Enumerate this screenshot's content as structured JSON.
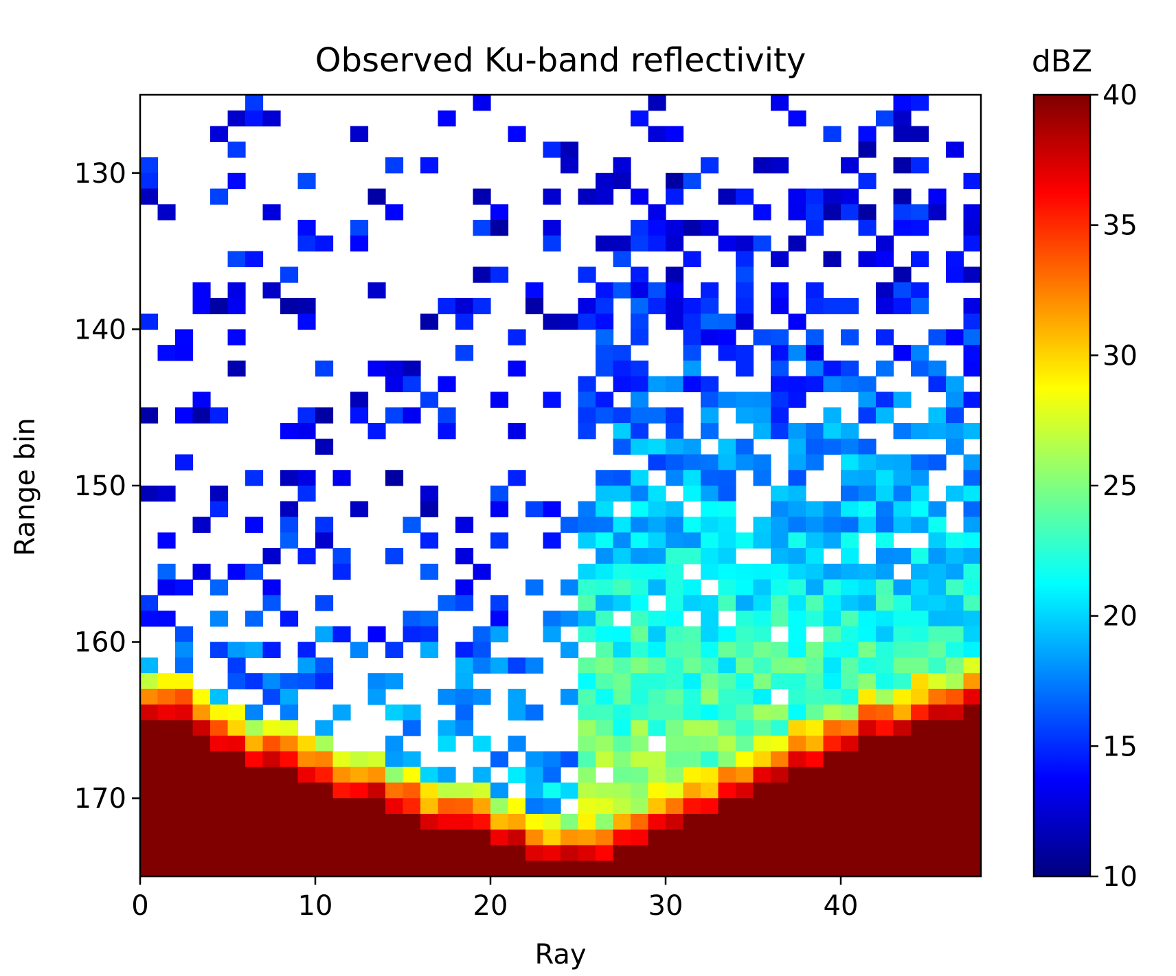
{
  "chart_data": {
    "type": "heatmap",
    "title": "Observed Ku-band reflectivity",
    "xlabel": "Ray",
    "ylabel": "Range bin",
    "xlim": [
      0,
      48
    ],
    "ylim": [
      175,
      125
    ],
    "x_ticks": [
      0,
      10,
      20,
      30,
      40
    ],
    "y_ticks": [
      130,
      140,
      150,
      160,
      170
    ],
    "colormap": "jet",
    "colorbar": {
      "title": "dBZ",
      "min": 10,
      "max": 40,
      "ticks": [
        10,
        15,
        20,
        25,
        30,
        35,
        40
      ]
    },
    "rows_note": "y = 125..174 (range bins), x = 0..47 (rays)",
    "grid": false,
    "mask_below": 10,
    "surface_bin_by_ray": [
      165,
      165,
      165,
      166,
      167,
      167,
      168,
      168,
      168,
      169,
      169,
      170,
      170,
      170,
      171,
      171,
      172,
      172,
      172,
      172,
      173,
      173,
      174,
      174,
      174,
      174,
      174,
      173,
      173,
      172,
      172,
      171,
      171,
      170,
      170,
      169,
      169,
      168,
      168,
      167,
      167,
      166,
      166,
      166,
      165,
      165,
      165,
      164
    ],
    "data_description": "Values in dBZ; cells below 10 dBZ are blank (not drawn). Near-surface clutter saturates at ~40 dBZ."
  }
}
